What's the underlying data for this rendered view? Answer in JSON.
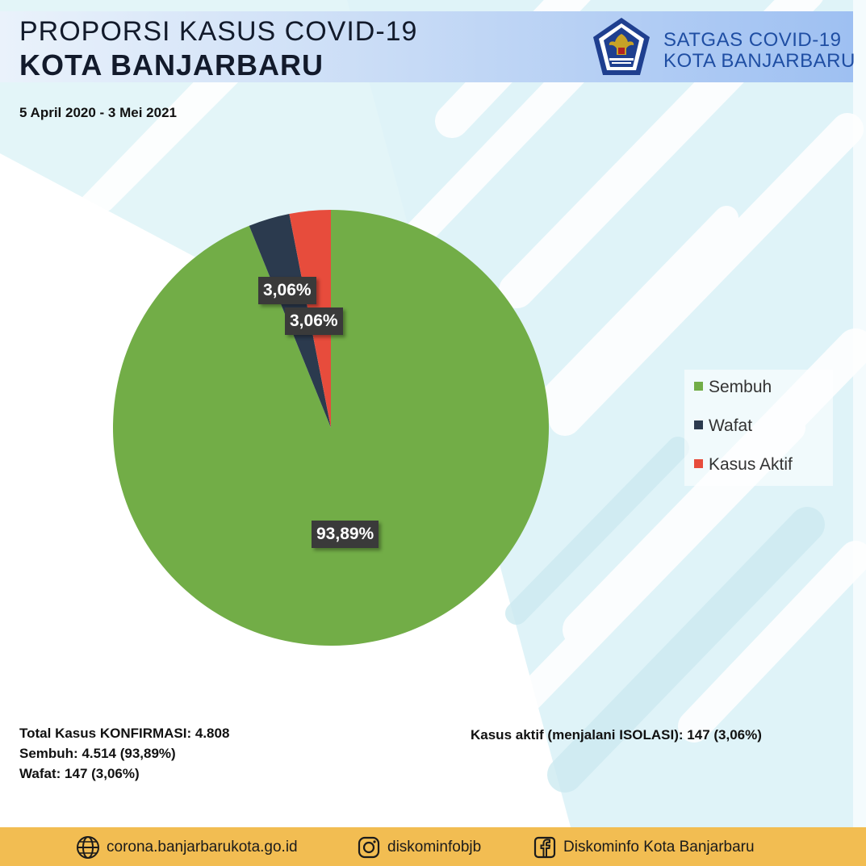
{
  "header": {
    "title_line1": "PROPORSI KASUS COVID-19",
    "title_line2": "KOTA BANJARBARU",
    "period": "5 April 2020 - 3 Mei 2021",
    "org_line1": "SATGAS COVID-19",
    "org_line2": "KOTA BANJARBARU",
    "logo_icon": "garuda-shield-logo"
  },
  "chart_data": {
    "type": "pie",
    "categories": [
      "Sembuh",
      "Wafat",
      "Kasus Aktif"
    ],
    "values": [
      93.89,
      3.06,
      3.06
    ],
    "labels": [
      "93,89%",
      "3,06%",
      "3,06%"
    ],
    "colors": [
      "#72ad47",
      "#2b3a4e",
      "#e74c3c"
    ],
    "start_angle": "12 o'clock",
    "direction": "clockwise",
    "legend_position": "right"
  },
  "stats": {
    "total": "Total Kasus KONFIRMASI: 4.808",
    "recovered": "Sembuh: 4.514 (93,89%)",
    "deaths": "Wafat: 147 (3,06%)",
    "active": "Kasus aktif (menjalani ISOLASI): 147 (3,06%)"
  },
  "footer": {
    "website": "corona.banjarbarukota.go.id",
    "instagram": "diskominfobjb",
    "facebook": "Diskominfo Kota Banjarbaru",
    "website_icon": "globe-icon",
    "instagram_icon": "instagram-icon",
    "facebook_icon": "facebook-icon"
  },
  "colors": {
    "footer_bg": "#f2bd52",
    "title_text": "#121a2b",
    "org_text": "#1f4ea3"
  }
}
